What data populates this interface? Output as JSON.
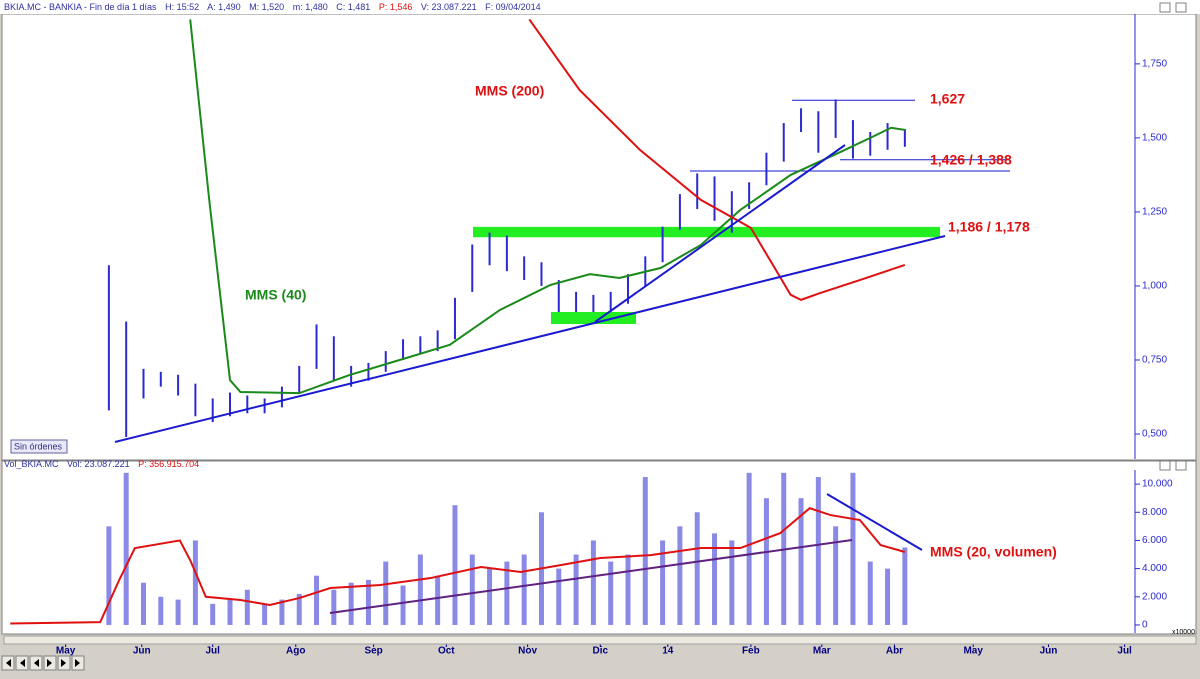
{
  "header": [
    "BKIA.MC - BANKIA - Fin de día 1 días",
    "H: 15:52",
    "A: 1,490",
    "M: 1,520",
    "m: 1,480",
    "C: 1,481",
    "P: 1,546",
    "V: 23.087.221",
    "F: 09/04/2014"
  ],
  "button": "Sin órdenes",
  "volume_header": [
    "Vol_BKIA.MC",
    "Vol: 23.087.221",
    "P: 356.915.704"
  ],
  "chart_data": [
    {
      "type": "ohlc",
      "color": "#2a2ad0",
      "xlim": [
        -1.33,
        63.8
      ],
      "ylim": [
        0.419,
        1.915
      ],
      "yticks": [
        {
          "value": 0.5,
          "label": "0,500"
        },
        {
          "value": 0.75,
          "label": "0,750"
        },
        {
          "value": 1,
          "label": "1,000"
        },
        {
          "value": 1.25,
          "label": "1,250"
        },
        {
          "value": 1.5,
          "label": "1,500"
        },
        {
          "value": 1.75,
          "label": "1,750"
        }
      ],
      "x": [
        4.5,
        5.5,
        6.5,
        7.5,
        8.5,
        9.5,
        10.5,
        11.5,
        12.5,
        13.5,
        14.5,
        15.5,
        16.5,
        17.5,
        18.5,
        19.5,
        20.5,
        21.5,
        22.5,
        23.5,
        24.5,
        25.5,
        26.5,
        27.5,
        28.5,
        29.5,
        30.5,
        31.5,
        32.5,
        33.5,
        34.5,
        35.5,
        36.5,
        37.5,
        38.5,
        39.5,
        40.5,
        41.5,
        42.5,
        43.5,
        44.5,
        45.5,
        46.5,
        47.5,
        48.5,
        49.5,
        50.5
      ],
      "high": [
        1.07,
        0.88,
        0.72,
        0.71,
        0.7,
        0.67,
        0.62,
        0.64,
        0.63,
        0.62,
        0.66,
        0.73,
        0.87,
        0.83,
        0.73,
        0.74,
        0.78,
        0.82,
        0.83,
        0.85,
        0.96,
        1.14,
        1.18,
        1.17,
        1.1,
        1.08,
        1.02,
        0.98,
        0.97,
        0.98,
        1.04,
        1.1,
        1.2,
        1.31,
        1.38,
        1.37,
        1.32,
        1.35,
        1.45,
        1.55,
        1.6,
        1.59,
        1.63,
        1.56,
        1.52,
        1.55,
        1.53
      ],
      "low": [
        0.58,
        0.49,
        0.62,
        0.66,
        0.63,
        0.56,
        0.54,
        0.56,
        0.57,
        0.57,
        0.59,
        0.64,
        0.72,
        0.68,
        0.66,
        0.68,
        0.71,
        0.75,
        0.77,
        0.78,
        0.82,
        0.98,
        1.07,
        1.05,
        1.02,
        1.0,
        0.89,
        0.89,
        0.88,
        0.9,
        0.94,
        1.0,
        1.08,
        1.19,
        1.26,
        1.22,
        1.18,
        1.26,
        1.34,
        1.42,
        1.52,
        1.45,
        1.5,
        1.43,
        1.44,
        1.46,
        1.47
      ],
      "series": [
        {
          "name": "MMS (40)",
          "color": "#1a8a1a",
          "x": [
            9.2,
            10.3,
            11.5,
            12.1,
            15.5,
            18.4,
            21.3,
            24.2,
            27.1,
            30.0,
            32.3,
            34.0,
            36.4,
            38.7,
            41.0,
            43.9,
            46.8,
            48.5,
            49.7,
            50.5
          ],
          "values": [
            1.9,
            1.29,
            0.682,
            0.642,
            0.638,
            0.699,
            0.75,
            0.801,
            0.919,
            1.003,
            1.04,
            1.027,
            1.061,
            1.138,
            1.257,
            1.375,
            1.453,
            1.5,
            1.534,
            1.527
          ]
        },
        {
          "name": "MMS (200)",
          "color": "#e01010",
          "x": [
            28.8,
            31.7,
            35.2,
            38.7,
            41.6,
            42.7,
            43.9,
            44.5,
            45.6,
            47.9,
            50.5
          ],
          "values": [
            1.9,
            1.662,
            1.459,
            1.291,
            1.196,
            1.088,
            0.97,
            0.953,
            0.976,
            1.02,
            1.071
          ]
        }
      ],
      "levels": [
        {
          "label": "1,627",
          "values": [
            1.627
          ]
        },
        {
          "label": "1,426 / 1,388",
          "values": [
            1.426,
            1.388
          ]
        },
        {
          "label": "1,186 / 1,178",
          "values": [
            1.186,
            1.178
          ]
        }
      ]
    },
    {
      "type": "bar",
      "color": "#8a8ae6",
      "y_unit": "x10000",
      "xlim": [
        -1.33,
        63.8
      ],
      "xticks": [
        {
          "value": 2,
          "label": "May"
        },
        {
          "value": 6.4,
          "label": "Jun"
        },
        {
          "value": 10.5,
          "label": "Jul"
        },
        {
          "value": 15.3,
          "label": "Ago"
        },
        {
          "value": 19.8,
          "label": "Sep"
        },
        {
          "value": 24,
          "label": "Oct"
        },
        {
          "value": 28.7,
          "label": "Nov"
        },
        {
          "value": 32.9,
          "label": "Dic"
        },
        {
          "value": 36.8,
          "label": "14"
        },
        {
          "value": 41.6,
          "label": "Feb"
        },
        {
          "value": 45.7,
          "label": "Mar"
        },
        {
          "value": 49.9,
          "label": "Abr"
        },
        {
          "value": 54.45,
          "label": "May"
        },
        {
          "value": 58.8,
          "label": "Jun"
        },
        {
          "value": 63.2,
          "label": "Jul"
        }
      ],
      "ylim": [
        -500,
        11000
      ],
      "yticks": [
        0,
        {
          "value": 2000,
          "label": "2.000"
        },
        {
          "value": 4000,
          "label": "4.000"
        },
        {
          "value": 6000,
          "label": "6.000"
        },
        {
          "value": 8000,
          "label": "8.000"
        },
        {
          "value": 10000,
          "label": "10.000"
        }
      ],
      "x": [
        4.5,
        5.5,
        6.5,
        7.5,
        8.5,
        9.5,
        10.5,
        11.5,
        12.5,
        13.5,
        14.5,
        15.5,
        16.5,
        17.5,
        18.5,
        19.5,
        20.5,
        21.5,
        22.5,
        23.5,
        24.5,
        25.5,
        26.5,
        27.5,
        28.5,
        29.5,
        30.5,
        31.5,
        32.5,
        33.5,
        34.5,
        35.5,
        36.5,
        37.5,
        38.5,
        39.5,
        40.5,
        41.5,
        42.5,
        43.5,
        44.5,
        45.5,
        46.5,
        47.5,
        48.5,
        49.5,
        50.5
      ],
      "values": [
        7000,
        10800,
        3000,
        2000,
        1800,
        6000,
        1500,
        1800,
        2500,
        1500,
        1800,
        2200,
        3500,
        2500,
        3000,
        3200,
        4500,
        2800,
        5000,
        3500,
        8500,
        5000,
        4000,
        4500,
        5000,
        8000,
        4000,
        5000,
        6000,
        4500,
        5000,
        10500,
        6000,
        7000,
        8000,
        6500,
        6000,
        10800,
        9000,
        10800,
        9000,
        10500,
        7000,
        10800,
        4500,
        4000,
        5500
      ],
      "series": [
        {
          "name": "MMS (20, volumen)",
          "color": "#e01010",
          "x": [
            -1.2,
            4.0,
            5.1,
            6.0,
            8.6,
            9.2,
            10.1,
            12.1,
            13.8,
            15.5,
            17.3,
            20.2,
            23.1,
            26.0,
            28.3,
            30.6,
            32.9,
            35.8,
            38.7,
            41.0,
            43.3,
            45.0,
            46.2,
            47.9,
            49.1,
            50.5
          ],
          "values": [
            100,
            200,
            3200,
            5450,
            6000,
            4600,
            2000,
            1770,
            1420,
            1910,
            2620,
            2840,
            3330,
            4110,
            3760,
            4250,
            4750,
            4960,
            5460,
            5460,
            6520,
            8290,
            7800,
            7450,
            5670,
            5180
          ]
        }
      ]
    }
  ]
}
